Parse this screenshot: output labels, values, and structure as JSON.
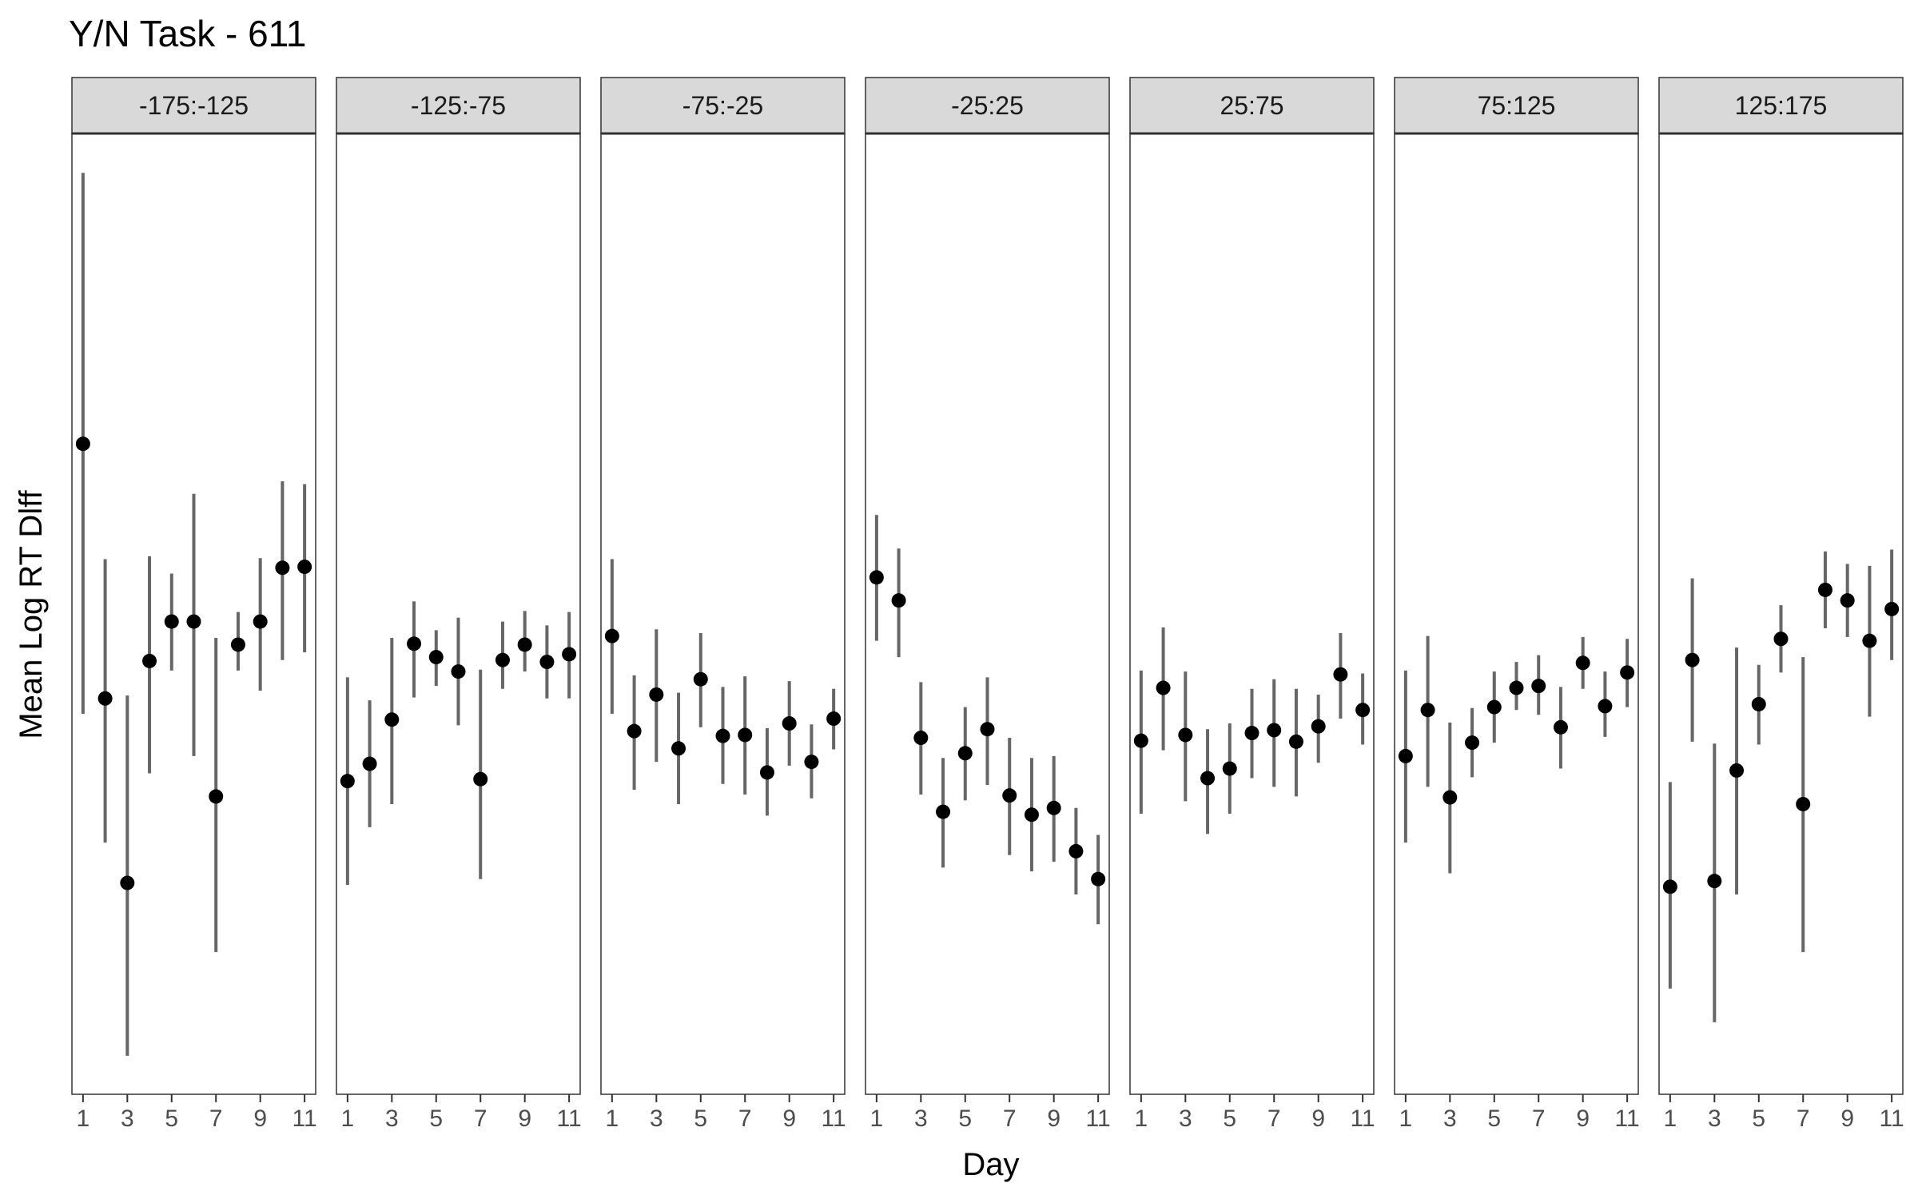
{
  "chart_data": {
    "type": "scatter",
    "title": "Y/N Task - 611",
    "xlabel": "Day",
    "ylabel": "Mean Log RT Dlff",
    "y_tick_labels_shown": false,
    "x_ticks": [
      1,
      3,
      5,
      7,
      9,
      11
    ],
    "xlim": [
      0.5,
      11.5
    ],
    "ylim": [
      0,
      1
    ],
    "grid": false,
    "legend": "none",
    "colors": {
      "point": "#000000",
      "errorbar": "#666666",
      "strip_fill": "#d9d9d9",
      "strip_border": "#333333",
      "panel_border": "#333333"
    },
    "panels": [
      {
        "label": "-175:-125",
        "x": [
          1,
          2,
          3,
          4,
          5,
          6,
          7,
          8,
          9,
          10,
          11
        ],
        "y": [
          0.677,
          0.412,
          0.22,
          0.451,
          0.492,
          0.492,
          0.31,
          0.468,
          0.492,
          0.548,
          0.549
        ],
        "y_low": [
          0.396,
          0.262,
          0.04,
          0.334,
          0.441,
          0.352,
          0.148,
          0.441,
          0.42,
          0.452,
          0.46
        ],
        "y_high": [
          0.959,
          0.557,
          0.415,
          0.56,
          0.542,
          0.625,
          0.475,
          0.502,
          0.558,
          0.638,
          0.635
        ]
      },
      {
        "label": "-125:-75",
        "x": [
          1,
          2,
          3,
          4,
          5,
          6,
          7,
          8,
          9,
          10,
          11
        ],
        "y": [
          0.326,
          0.344,
          0.39,
          0.469,
          0.455,
          0.44,
          0.328,
          0.452,
          0.468,
          0.45,
          0.458
        ],
        "y_low": [
          0.218,
          0.278,
          0.302,
          0.413,
          0.425,
          0.384,
          0.224,
          0.422,
          0.44,
          0.412,
          0.412
        ],
        "y_high": [
          0.434,
          0.41,
          0.475,
          0.513,
          0.483,
          0.496,
          0.442,
          0.492,
          0.503,
          0.488,
          0.502
        ]
      },
      {
        "label": "-75:-25",
        "x": [
          1,
          2,
          3,
          4,
          5,
          6,
          7,
          8,
          9,
          10,
          11
        ],
        "y": [
          0.477,
          0.378,
          0.416,
          0.36,
          0.432,
          0.373,
          0.374,
          0.335,
          0.386,
          0.346,
          0.391
        ],
        "y_low": [
          0.396,
          0.317,
          0.346,
          0.302,
          0.382,
          0.323,
          0.312,
          0.29,
          0.342,
          0.308,
          0.359
        ],
        "y_high": [
          0.557,
          0.436,
          0.484,
          0.418,
          0.48,
          0.424,
          0.435,
          0.381,
          0.43,
          0.385,
          0.422
        ]
      },
      {
        "label": "-25:25",
        "x": [
          1,
          2,
          3,
          4,
          5,
          6,
          7,
          8,
          9,
          10,
          11
        ],
        "y": [
          0.538,
          0.514,
          0.371,
          0.294,
          0.355,
          0.38,
          0.311,
          0.291,
          0.298,
          0.253,
          0.224
        ],
        "y_low": [
          0.472,
          0.455,
          0.312,
          0.236,
          0.306,
          0.322,
          0.249,
          0.232,
          0.242,
          0.208,
          0.177
        ],
        "y_high": [
          0.603,
          0.568,
          0.429,
          0.35,
          0.403,
          0.434,
          0.371,
          0.35,
          0.352,
          0.298,
          0.27
        ]
      },
      {
        "label": "25:75",
        "x": [
          1,
          2,
          3,
          4,
          5,
          6,
          7,
          8,
          9,
          10,
          11
        ],
        "y": [
          0.368,
          0.423,
          0.374,
          0.329,
          0.339,
          0.376,
          0.379,
          0.367,
          0.383,
          0.437,
          0.4
        ],
        "y_low": [
          0.292,
          0.358,
          0.305,
          0.271,
          0.292,
          0.329,
          0.32,
          0.31,
          0.345,
          0.391,
          0.364
        ],
        "y_high": [
          0.441,
          0.486,
          0.44,
          0.38,
          0.386,
          0.422,
          0.432,
          0.422,
          0.416,
          0.48,
          0.438
        ]
      },
      {
        "label": "75:125",
        "x": [
          1,
          2,
          3,
          4,
          5,
          6,
          7,
          8,
          9,
          10,
          11
        ],
        "y": [
          0.352,
          0.4,
          0.309,
          0.366,
          0.403,
          0.423,
          0.425,
          0.382,
          0.449,
          0.404,
          0.439
        ],
        "y_low": [
          0.262,
          0.32,
          0.23,
          0.33,
          0.366,
          0.4,
          0.395,
          0.339,
          0.422,
          0.372,
          0.403
        ],
        "y_high": [
          0.441,
          0.477,
          0.387,
          0.402,
          0.44,
          0.45,
          0.457,
          0.424,
          0.476,
          0.44,
          0.474
        ]
      },
      {
        "label": "125:175",
        "x": [
          1,
          2,
          3,
          4,
          5,
          6,
          7,
          8,
          9,
          10,
          11
        ],
        "y": [
          0.216,
          0.452,
          0.222,
          0.337,
          0.406,
          0.474,
          0.302,
          0.525,
          0.514,
          0.472,
          0.505
        ],
        "y_low": [
          0.11,
          0.367,
          0.075,
          0.208,
          0.364,
          0.439,
          0.148,
          0.485,
          0.476,
          0.393,
          0.452
        ],
        "y_high": [
          0.325,
          0.537,
          0.365,
          0.465,
          0.447,
          0.509,
          0.455,
          0.565,
          0.552,
          0.55,
          0.567
        ]
      }
    ]
  }
}
